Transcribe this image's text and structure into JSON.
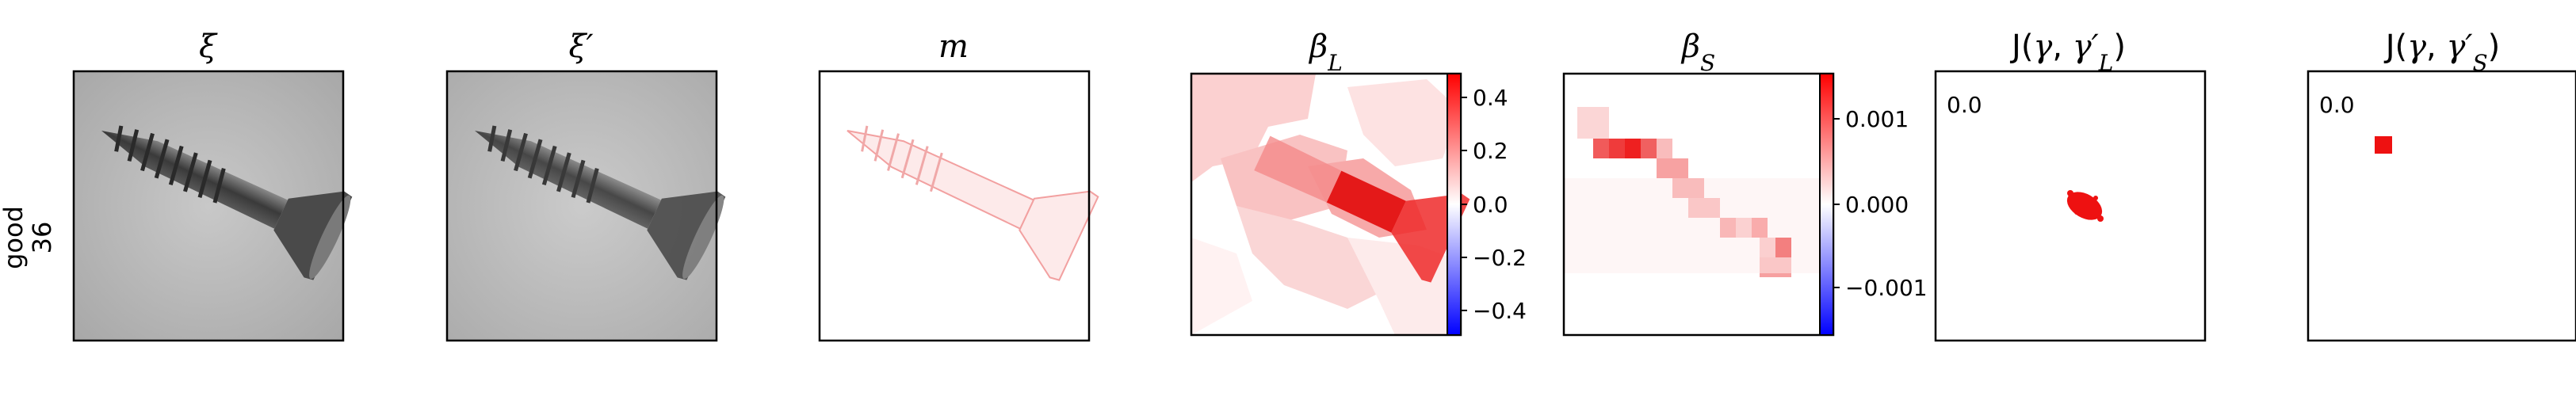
{
  "row_label": {
    "line1": "good",
    "line2": "36"
  },
  "panels": [
    {
      "title": "ξ"
    },
    {
      "title": "ξ′"
    },
    {
      "title": "m"
    },
    {
      "title": "β_L",
      "colorbar": {
        "ticks": [
          "0.4",
          "0.2",
          "0.0",
          "−0.2",
          "−0.4"
        ]
      }
    },
    {
      "title": "β_S",
      "colorbar": {
        "ticks": [
          "0.001",
          "0.000",
          "−0.001"
        ]
      }
    },
    {
      "title": "J(γ, γ′_L)",
      "value": "0.0"
    },
    {
      "title": "J(γ, γ′_S)",
      "value": "0.0"
    }
  ],
  "colors": {
    "red": "#ff0000",
    "blue": "#0000ff",
    "frame": "#000000"
  }
}
